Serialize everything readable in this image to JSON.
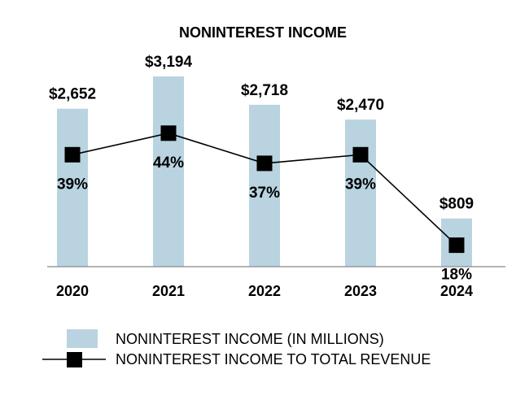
{
  "chart_data": {
    "type": "bar",
    "title": "NONINTEREST INCOME",
    "categories": [
      "2020",
      "2021",
      "2022",
      "2023",
      "2024"
    ],
    "series": [
      {
        "name": "NONINTEREST INCOME (IN MILLIONS)",
        "kind": "bar",
        "values": [
          2652,
          3194,
          2718,
          2470,
          809
        ],
        "labels": [
          "$2,652",
          "$3,194",
          "$2,718",
          "$2,470",
          "$809"
        ],
        "color": "#b9d3e1"
      },
      {
        "name": "NONINTEREST INCOME TO TOTAL REVENUE",
        "kind": "line",
        "values": [
          39,
          44,
          37,
          39,
          18
        ],
        "labels": [
          "39%",
          "44%",
          "37%",
          "39%",
          "18%"
        ],
        "color": "#000000"
      }
    ],
    "xlabel": "",
    "ylabel": "",
    "grid": false,
    "legend_position": "bottom"
  }
}
